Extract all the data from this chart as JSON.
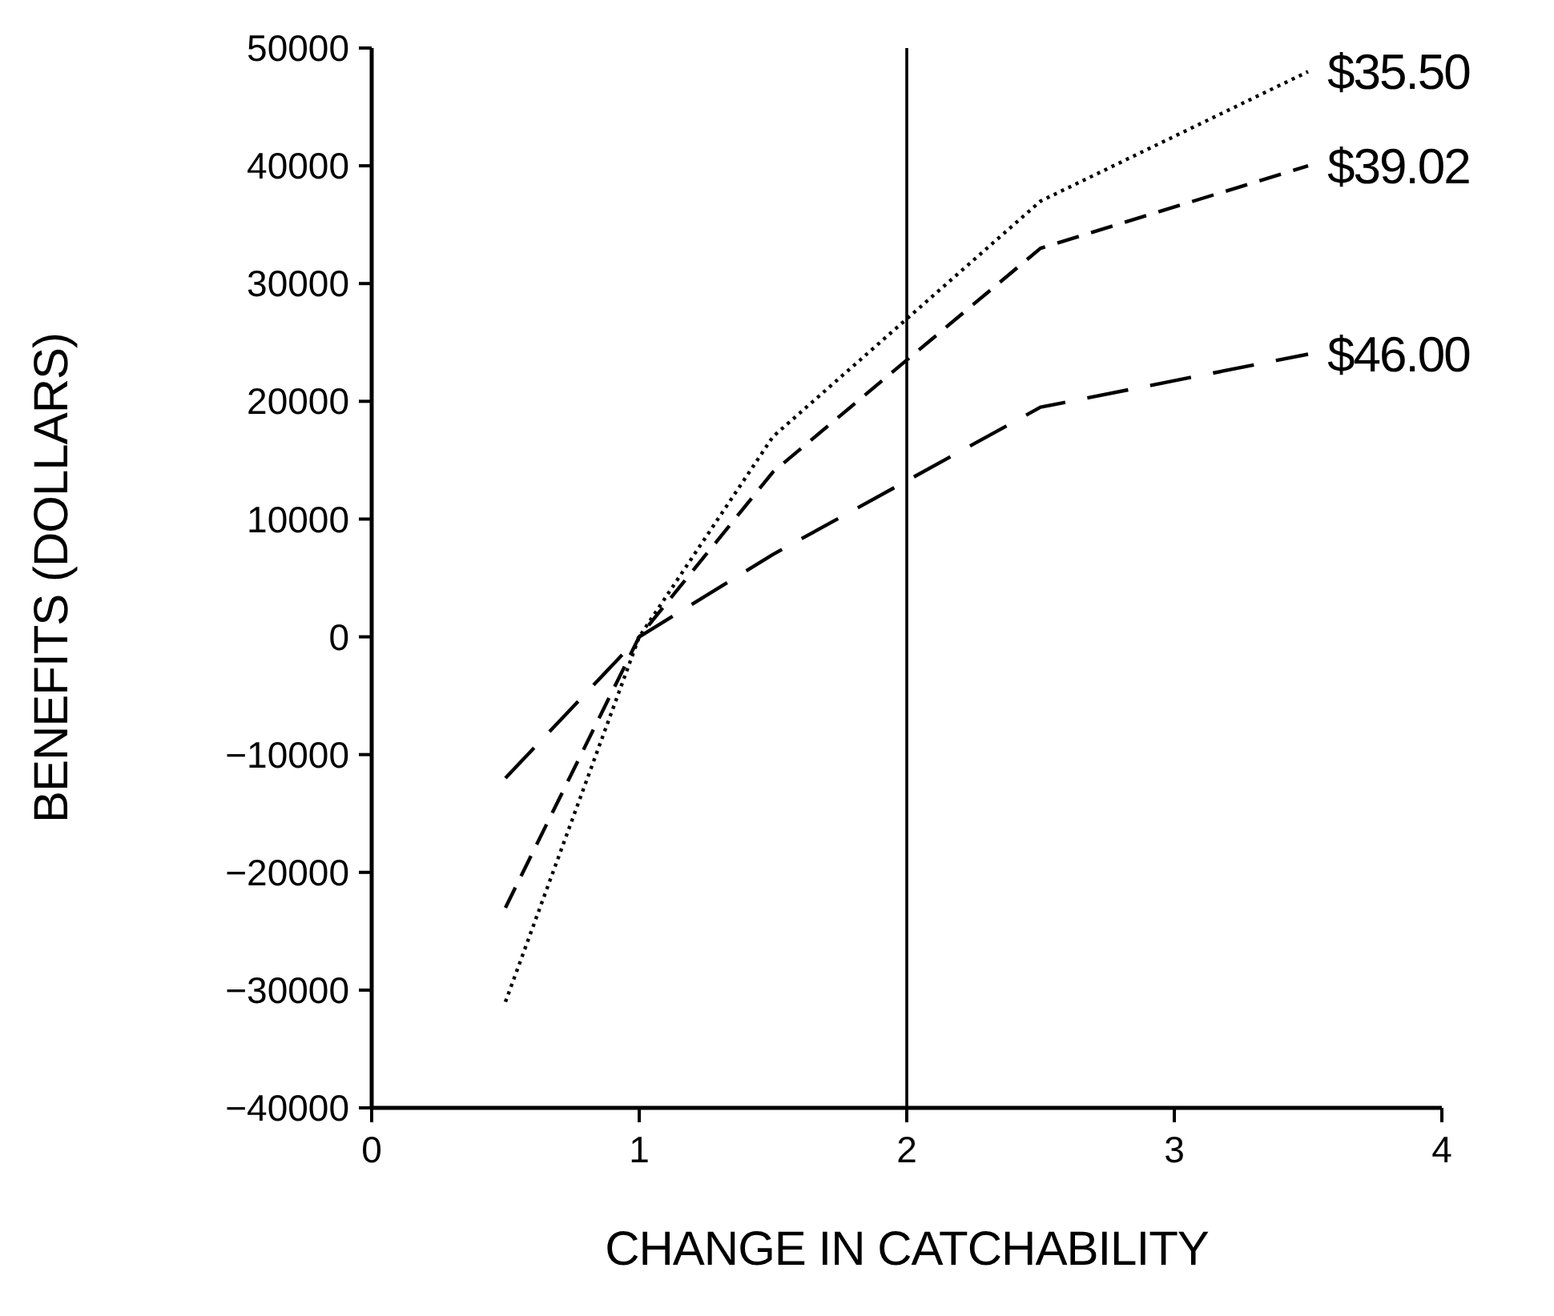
{
  "chart_data": {
    "type": "line",
    "xlabel": "CHANGE IN CATCHABILITY",
    "ylabel": "BENEFITS (DOLLARS)",
    "x": [
      0.5,
      1,
      1.5,
      2.5,
      3.5
    ],
    "series": [
      {
        "name": "$35.50",
        "color": "#000000",
        "line_style": "dotted",
        "values": [
          -31000,
          0,
          17000,
          37000,
          48000
        ]
      },
      {
        "name": "$39.02",
        "color": "#000000",
        "line_style": "dashed",
        "values": [
          -23000,
          0,
          14000,
          33000,
          40000
        ]
      },
      {
        "name": "$46.00",
        "color": "#000000",
        "line_style": "dashed",
        "values": [
          -12000,
          0,
          7000,
          19500,
          24000
        ]
      }
    ],
    "xlim": [
      0,
      4
    ],
    "xticks": [
      0,
      1,
      2,
      3,
      4
    ],
    "ylim": [
      -40000,
      50000
    ],
    "yticks": [
      -40000,
      -30000,
      -20000,
      -10000,
      0,
      10000,
      20000,
      30000,
      40000,
      50000
    ],
    "ref_lines": [
      {
        "axis": "x",
        "value": 2,
        "color": "#000000"
      }
    ],
    "grid": false,
    "marker": "none"
  }
}
